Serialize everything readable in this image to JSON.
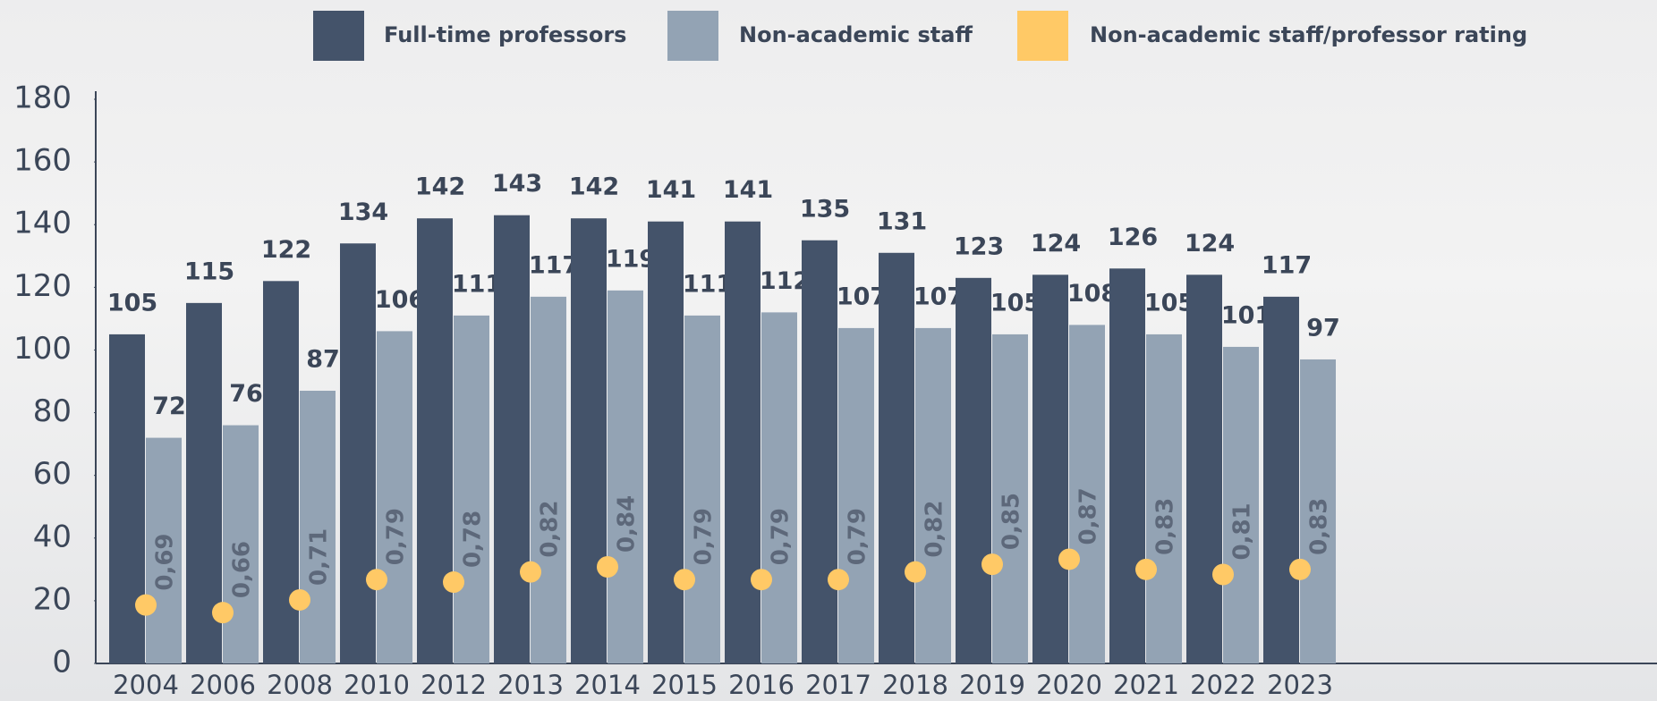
{
  "chart_data": {
    "type": "bar",
    "categories": [
      "2004",
      "2006",
      "2008",
      "2010",
      "2012",
      "2013",
      "2014",
      "2015",
      "2016",
      "2017",
      "2018",
      "2019",
      "2020",
      "2021",
      "2022",
      "2023"
    ],
    "series": [
      {
        "name": "Full-time professors",
        "color": "#44536a",
        "values": [
          105,
          115,
          122,
          134,
          142,
          143,
          142,
          141,
          141,
          135,
          131,
          123,
          124,
          126,
          124,
          117
        ]
      },
      {
        "name": "Non-academic staff",
        "color": "#93a3b4",
        "values": [
          72,
          76,
          87,
          106,
          111,
          117,
          119,
          111,
          112,
          107,
          107,
          105,
          108,
          105,
          101,
          97
        ]
      },
      {
        "name": "Non-academic staff/professor rating",
        "color": "#ffc966",
        "axis": "y2",
        "type": "scatter",
        "values": [
          0.69,
          0.66,
          0.71,
          0.79,
          0.78,
          0.82,
          0.84,
          0.79,
          0.79,
          0.79,
          0.82,
          0.85,
          0.87,
          0.83,
          0.81,
          0.83
        ],
        "value_labels": [
          "0,69",
          "0,66",
          "0,71",
          "0,79",
          "0,78",
          "0,82",
          "0,84",
          "0,79",
          "0,79",
          "0,79",
          "0,82",
          "0,85",
          "0,87",
          "0,83",
          "0,81",
          "0,83"
        ]
      }
    ],
    "ylim": [
      0,
      180
    ],
    "yticks": [
      0,
      20,
      40,
      60,
      80,
      100,
      120,
      140,
      160,
      180
    ],
    "y2lim": [
      0.46,
      2.68
    ]
  }
}
